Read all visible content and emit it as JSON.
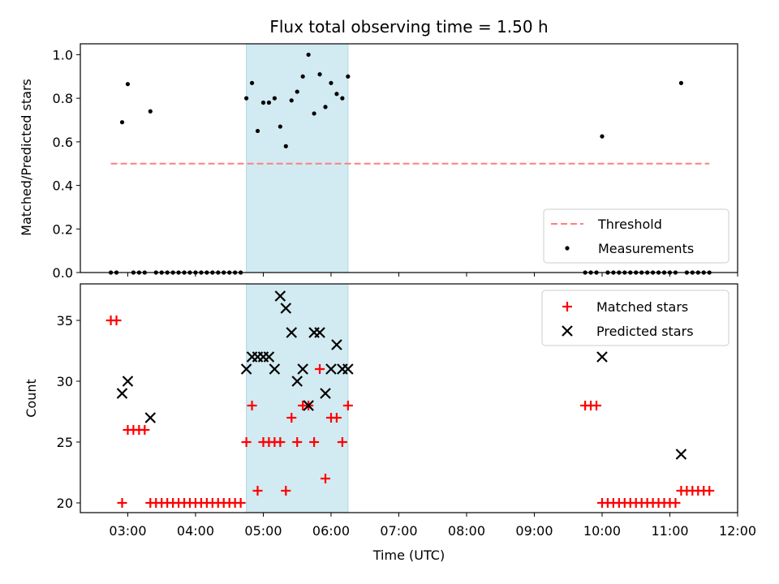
{
  "chart_data": [
    {
      "type": "scatter",
      "title": "Flux total observing time = 1.50 h",
      "ylabel": "Matched/Predicted stars",
      "xlim": [
        "02:18",
        "12:00"
      ],
      "ylim": [
        0.0,
        1.05
      ],
      "yticks": [
        "0.0",
        "0.2",
        "0.4",
        "0.6",
        "0.8",
        "1.0"
      ],
      "highlight_span": {
        "start": "04:45",
        "end": "06:15",
        "color": "#add8e6"
      },
      "threshold": {
        "name": "Threshold",
        "value": 0.5,
        "x_range": [
          "02:45",
          "11:35"
        ],
        "color": "#ff7f7f",
        "style": "dashed"
      },
      "legend": {
        "placement": "lower-right",
        "entries": [
          "Threshold",
          "Measurements"
        ]
      },
      "series": [
        {
          "name": "Measurements",
          "marker": "dot",
          "color": "#000000",
          "points": [
            [
              "02:45",
              0.0
            ],
            [
              "02:50",
              0.0
            ],
            [
              "02:55",
              0.69
            ],
            [
              "03:00",
              0.865
            ],
            [
              "03:05",
              0.0
            ],
            [
              "03:10",
              0.0
            ],
            [
              "03:15",
              0.0
            ],
            [
              "03:20",
              0.74
            ],
            [
              "03:25",
              0.0
            ],
            [
              "03:30",
              0.0
            ],
            [
              "03:35",
              0.0
            ],
            [
              "03:40",
              0.0
            ],
            [
              "03:45",
              0.0
            ],
            [
              "03:50",
              0.0
            ],
            [
              "03:55",
              0.0
            ],
            [
              "04:00",
              0.0
            ],
            [
              "04:05",
              0.0
            ],
            [
              "04:10",
              0.0
            ],
            [
              "04:15",
              0.0
            ],
            [
              "04:20",
              0.0
            ],
            [
              "04:25",
              0.0
            ],
            [
              "04:30",
              0.0
            ],
            [
              "04:35",
              0.0
            ],
            [
              "04:40",
              0.0
            ],
            [
              "04:45",
              0.8
            ],
            [
              "04:50",
              0.87
            ],
            [
              "04:55",
              0.65
            ],
            [
              "05:00",
              0.78
            ],
            [
              "05:05",
              0.78
            ],
            [
              "05:10",
              0.8
            ],
            [
              "05:15",
              0.67
            ],
            [
              "05:20",
              0.58
            ],
            [
              "05:25",
              0.79
            ],
            [
              "05:30",
              0.83
            ],
            [
              "05:35",
              0.9
            ],
            [
              "05:40",
              1.0
            ],
            [
              "05:45",
              0.73
            ],
            [
              "05:50",
              0.91
            ],
            [
              "05:55",
              0.76
            ],
            [
              "06:00",
              0.87
            ],
            [
              "06:05",
              0.82
            ],
            [
              "06:10",
              0.8
            ],
            [
              "06:15",
              0.9
            ],
            [
              "09:45",
              0.0
            ],
            [
              "09:50",
              0.0
            ],
            [
              "09:55",
              0.0
            ],
            [
              "10:00",
              0.625
            ],
            [
              "10:05",
              0.0
            ],
            [
              "10:10",
              0.0
            ],
            [
              "10:15",
              0.0
            ],
            [
              "10:20",
              0.0
            ],
            [
              "10:25",
              0.0
            ],
            [
              "10:30",
              0.0
            ],
            [
              "10:35",
              0.0
            ],
            [
              "10:40",
              0.0
            ],
            [
              "10:45",
              0.0
            ],
            [
              "10:50",
              0.0
            ],
            [
              "10:55",
              0.0
            ],
            [
              "11:00",
              0.0
            ],
            [
              "11:05",
              0.0
            ],
            [
              "11:10",
              0.87
            ],
            [
              "11:15",
              0.0
            ],
            [
              "11:20",
              0.0
            ],
            [
              "11:25",
              0.0
            ],
            [
              "11:30",
              0.0
            ],
            [
              "11:35",
              0.0
            ]
          ]
        }
      ]
    },
    {
      "type": "scatter",
      "xlabel": "Time (UTC)",
      "ylabel": "Count",
      "xlim": [
        "02:18",
        "12:00"
      ],
      "ylim": [
        19.2,
        38.0
      ],
      "yticks": [
        "20",
        "25",
        "30",
        "35"
      ],
      "xticks": [
        "03:00",
        "04:00",
        "05:00",
        "06:00",
        "07:00",
        "08:00",
        "09:00",
        "10:00",
        "11:00",
        "12:00"
      ],
      "highlight_span": {
        "start": "04:45",
        "end": "06:15",
        "color": "#add8e6"
      },
      "legend": {
        "placement": "top-right",
        "entries": [
          "Matched stars",
          "Predicted stars"
        ]
      },
      "series": [
        {
          "name": "Matched stars",
          "marker": "plus",
          "color": "#ff0000",
          "points": [
            [
              "02:45",
              35
            ],
            [
              "02:50",
              35
            ],
            [
              "02:55",
              20
            ],
            [
              "03:00",
              26
            ],
            [
              "03:05",
              26
            ],
            [
              "03:10",
              26
            ],
            [
              "03:15",
              26
            ],
            [
              "03:20",
              20
            ],
            [
              "03:25",
              20
            ],
            [
              "03:30",
              20
            ],
            [
              "03:35",
              20
            ],
            [
              "03:40",
              20
            ],
            [
              "03:45",
              20
            ],
            [
              "03:50",
              20
            ],
            [
              "03:55",
              20
            ],
            [
              "04:00",
              20
            ],
            [
              "04:05",
              20
            ],
            [
              "04:10",
              20
            ],
            [
              "04:15",
              20
            ],
            [
              "04:20",
              20
            ],
            [
              "04:25",
              20
            ],
            [
              "04:30",
              20
            ],
            [
              "04:35",
              20
            ],
            [
              "04:40",
              20
            ],
            [
              "04:45",
              25
            ],
            [
              "04:50",
              28
            ],
            [
              "04:55",
              21
            ],
            [
              "05:00",
              25
            ],
            [
              "05:05",
              25
            ],
            [
              "05:10",
              25
            ],
            [
              "05:15",
              25
            ],
            [
              "05:20",
              21
            ],
            [
              "05:25",
              27
            ],
            [
              "05:30",
              25
            ],
            [
              "05:35",
              28
            ],
            [
              "05:40",
              28
            ],
            [
              "05:45",
              25
            ],
            [
              "05:50",
              31
            ],
            [
              "05:55",
              22
            ],
            [
              "06:00",
              27
            ],
            [
              "06:05",
              27
            ],
            [
              "06:10",
              25
            ],
            [
              "06:15",
              28
            ],
            [
              "09:45",
              28
            ],
            [
              "09:50",
              28
            ],
            [
              "09:55",
              28
            ],
            [
              "10:00",
              20
            ],
            [
              "10:05",
              20
            ],
            [
              "10:10",
              20
            ],
            [
              "10:15",
              20
            ],
            [
              "10:20",
              20
            ],
            [
              "10:25",
              20
            ],
            [
              "10:30",
              20
            ],
            [
              "10:35",
              20
            ],
            [
              "10:40",
              20
            ],
            [
              "10:45",
              20
            ],
            [
              "10:50",
              20
            ],
            [
              "10:55",
              20
            ],
            [
              "11:00",
              20
            ],
            [
              "11:05",
              20
            ],
            [
              "11:10",
              21
            ],
            [
              "11:15",
              21
            ],
            [
              "11:20",
              21
            ],
            [
              "11:25",
              21
            ],
            [
              "11:30",
              21
            ],
            [
              "11:35",
              21
            ]
          ]
        },
        {
          "name": "Predicted stars",
          "marker": "x",
          "color": "#000000",
          "points": [
            [
              "02:55",
              29
            ],
            [
              "03:00",
              30
            ],
            [
              "03:20",
              27
            ],
            [
              "04:45",
              31
            ],
            [
              "04:50",
              32
            ],
            [
              "04:55",
              32
            ],
            [
              "05:00",
              32
            ],
            [
              "05:05",
              32
            ],
            [
              "05:10",
              31
            ],
            [
              "05:15",
              37
            ],
            [
              "05:20",
              36
            ],
            [
              "05:25",
              34
            ],
            [
              "05:30",
              30
            ],
            [
              "05:35",
              31
            ],
            [
              "05:40",
              28
            ],
            [
              "05:45",
              34
            ],
            [
              "05:50",
              34
            ],
            [
              "05:55",
              29
            ],
            [
              "06:00",
              31
            ],
            [
              "06:05",
              33
            ],
            [
              "06:10",
              31
            ],
            [
              "06:15",
              31
            ],
            [
              "10:00",
              32
            ],
            [
              "11:10",
              24
            ]
          ]
        }
      ]
    }
  ]
}
